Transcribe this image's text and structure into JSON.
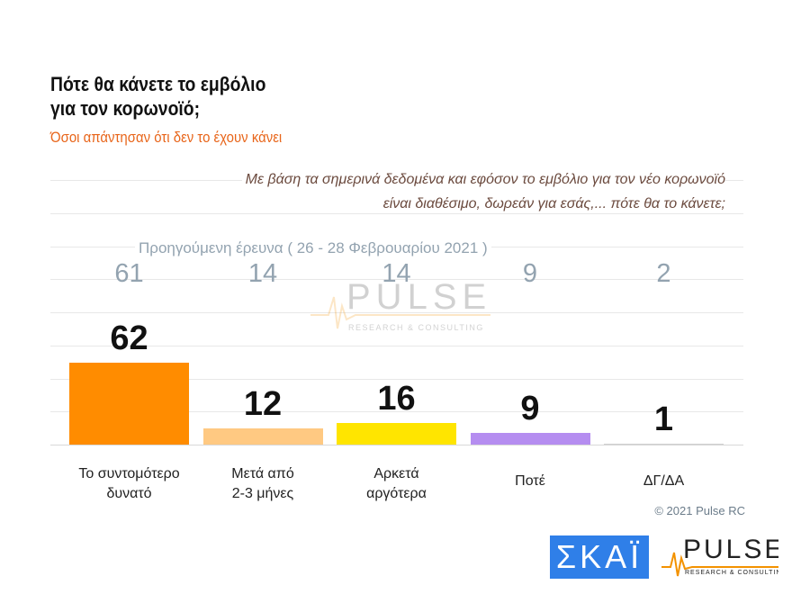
{
  "title_line1": "Πότε θα κάνετε το εμβόλιο",
  "title_line2": "για τον κορωνοϊό;",
  "subtitle": "Όσοι απάντησαν ότι δεν το έχουν κάνει",
  "question_line1": "Με βάση τα σημερινά δεδομένα και εφόσον το εμβόλιο για τον νέο κορωνοϊό",
  "question_line2": "είναι διαθέσιμο, δωρεάν για εσάς,... πότε θα το κάνετε;",
  "previous_label": "Προηγούμενη έρευνα  ( 26 - 28  Φεβρουαρίου  2021 )",
  "copyright": "© 2021 Pulse RC",
  "logos": {
    "skai": "ΣΚΑΪ",
    "pulse": "PULSE",
    "pulse_sub": "RESEARCH & CONSULTING"
  },
  "chart_data": {
    "type": "bar",
    "categories": [
      [
        "Το συντομότερο",
        "δυνατό"
      ],
      [
        "Μετά από",
        "2-3 μήνες"
      ],
      [
        "Αρκετά",
        "αργότερα"
      ],
      [
        "Ποτέ",
        ""
      ],
      [
        "ΔΓ/ΔΑ",
        ""
      ]
    ],
    "values": [
      62,
      12,
      16,
      9,
      1
    ],
    "previous_values": [
      61,
      14,
      14,
      9,
      2
    ],
    "colors": [
      "#FF8C00",
      "#FFC982",
      "#FFE500",
      "#B58DF0",
      "#D0D0D0"
    ],
    "ylim": [
      0,
      200
    ],
    "grid": true
  }
}
